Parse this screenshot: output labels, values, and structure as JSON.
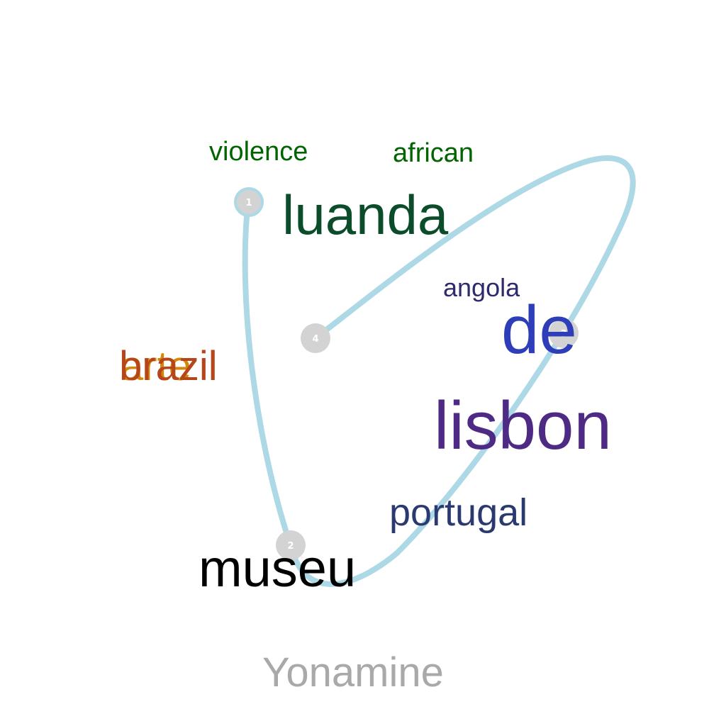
{
  "title": "Yonamine",
  "path_color": "#add8e6",
  "node_color": "#d3d3d3",
  "nodes": [
    {
      "label": "1"
    },
    {
      "label": "2"
    },
    {
      "label": "3"
    },
    {
      "label": "4"
    }
  ],
  "words": {
    "violence": {
      "text": "violence",
      "color": "#006400"
    },
    "african": {
      "text": "african",
      "color": "#006400"
    },
    "luanda": {
      "text": "luanda",
      "color": "#0b4d2a"
    },
    "angola": {
      "text": "angola",
      "color": "#2d2a6e"
    },
    "de": {
      "text": "de",
      "color": "#2e3db8"
    },
    "lisbon": {
      "text": "lisbon",
      "color": "#4e2a84"
    },
    "portugal": {
      "text": "portugal",
      "color": "#2b3a6e"
    },
    "museu": {
      "text": "museu",
      "color": "#000000"
    },
    "arte": {
      "text": "arte",
      "color": "#d4860b"
    },
    "brazil": {
      "text": "brazil",
      "color": "#b5461a"
    }
  }
}
